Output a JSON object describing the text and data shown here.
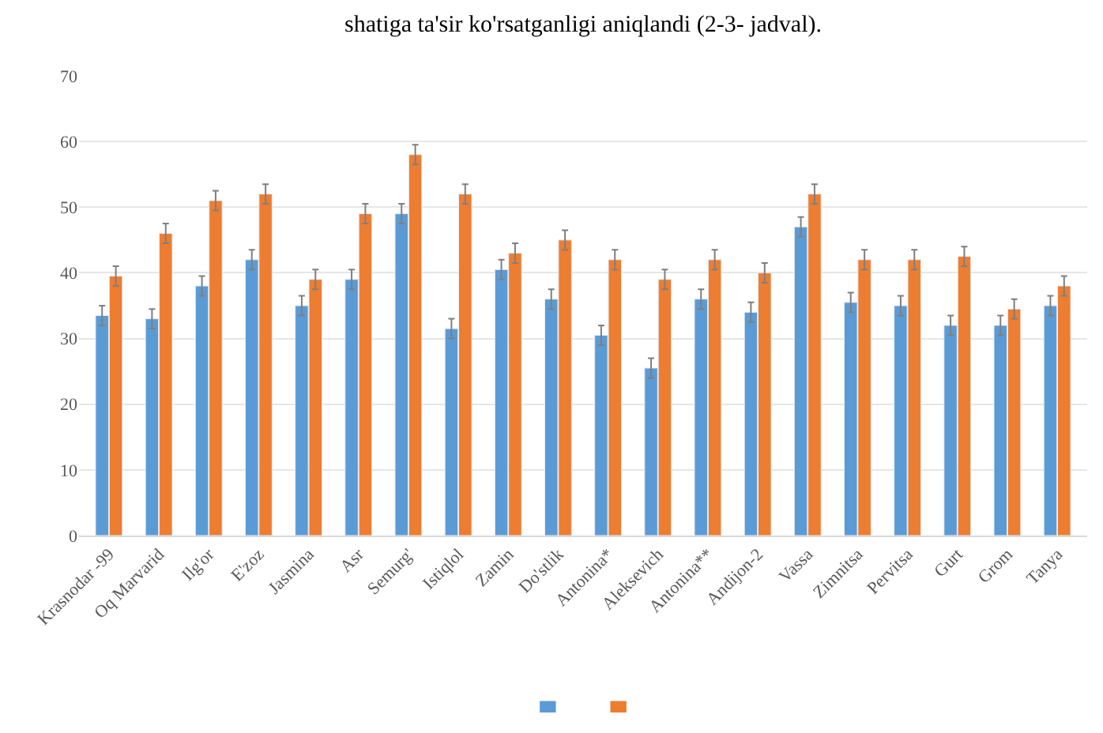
{
  "chart_data": {
    "type": "bar",
    "annotations": [
      "shatiga ta'sir ko'rsatganligi aniqlandi (2-3- jadval)."
    ],
    "categories": [
      "Krasnodar -99",
      "Oq Marvarid",
      "Ilg'or",
      "E'zoz",
      "Jasmina",
      "Asr",
      "Semurg'",
      "Istiqlol",
      "Zamin",
      "Do'stlik",
      "Antonina*",
      "Aleksevich",
      "Antonina**",
      "Andijon-2",
      "Vassa",
      "Zimnitsa",
      "Pervitsa",
      "Gurt",
      "Grom",
      "Tanya"
    ],
    "series": [
      {
        "color": "#5b9bd5",
        "values": [
          33.5,
          33,
          38,
          42,
          35,
          39,
          49,
          31.5,
          40.5,
          36,
          30.5,
          25.5,
          36,
          34,
          47,
          35.5,
          35,
          32,
          32,
          35
        ],
        "errors": [
          1.5,
          1.5,
          1.5,
          1.5,
          1.5,
          1.5,
          1.5,
          1.5,
          1.5,
          1.5,
          1.5,
          1.5,
          1.5,
          1.5,
          1.5,
          1.5,
          1.5,
          1.5,
          1.5,
          1.5
        ]
      },
      {
        "color": "#ed7d31",
        "values": [
          39.5,
          46,
          51,
          52,
          39,
          49,
          58,
          52,
          43,
          45,
          42,
          39,
          42,
          40,
          52,
          42,
          42,
          42.5,
          34.5,
          38
        ],
        "errors": [
          1.5,
          1.5,
          1.5,
          1.5,
          1.5,
          1.5,
          1.5,
          1.5,
          1.5,
          1.5,
          1.5,
          1.5,
          1.5,
          1.5,
          1.5,
          1.5,
          1.5,
          1.5,
          1.5,
          1.5
        ]
      }
    ],
    "ylim": [
      0,
      70
    ],
    "yticks": [
      0,
      10,
      20,
      30,
      40,
      50,
      60,
      70
    ],
    "grid": "y"
  }
}
